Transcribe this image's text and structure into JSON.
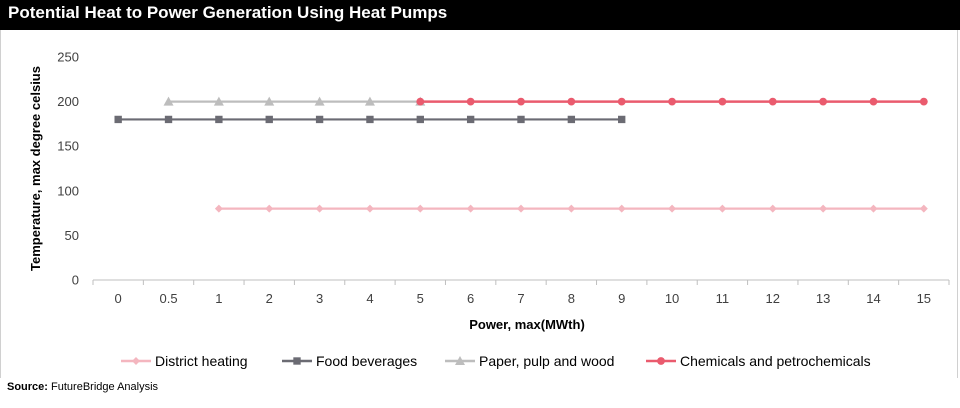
{
  "header": {
    "title": "Potential Heat to Power Generation Using Heat Pumps"
  },
  "footer": {
    "source_label": "Source:",
    "source_text": " FutureBridge Analysis"
  },
  "chart_data": {
    "type": "line",
    "title": "Potential Heat to Power Generation Using Heat Pumps",
    "xlabel": "Power, max(MWth)",
    "ylabel": "Temperature, max degree celsius",
    "categories": [
      "0",
      "0.5",
      "1",
      "2",
      "3",
      "4",
      "5",
      "6",
      "7",
      "8",
      "9",
      "10",
      "11",
      "12",
      "13",
      "14",
      "15"
    ],
    "ylim": [
      0,
      250
    ],
    "yticks": [
      0,
      50,
      100,
      150,
      200,
      250
    ],
    "grid": false,
    "legend": "bottom",
    "series": [
      {
        "name": "District heating",
        "color": "#f4b6bf",
        "marker": "diamond",
        "values": [
          null,
          null,
          80,
          80,
          80,
          80,
          80,
          80,
          80,
          80,
          80,
          80,
          80,
          80,
          80,
          80,
          80
        ]
      },
      {
        "name": "Food beverages",
        "color": "#6b6b73",
        "marker": "square",
        "values": [
          180,
          180,
          180,
          180,
          180,
          180,
          180,
          180,
          180,
          180,
          180,
          null,
          null,
          null,
          null,
          null,
          null
        ]
      },
      {
        "name": "Paper, pulp and wood",
        "color": "#bdbdbd",
        "marker": "triangle",
        "values": [
          null,
          200,
          200,
          200,
          200,
          200,
          200,
          null,
          null,
          null,
          null,
          null,
          null,
          null,
          null,
          null,
          null
        ]
      },
      {
        "name": "Chemicals and petrochemicals",
        "color": "#ea5b6e",
        "marker": "circle",
        "values": [
          null,
          null,
          null,
          null,
          null,
          null,
          200,
          200,
          200,
          200,
          200,
          200,
          200,
          200,
          200,
          200,
          200
        ]
      }
    ]
  }
}
